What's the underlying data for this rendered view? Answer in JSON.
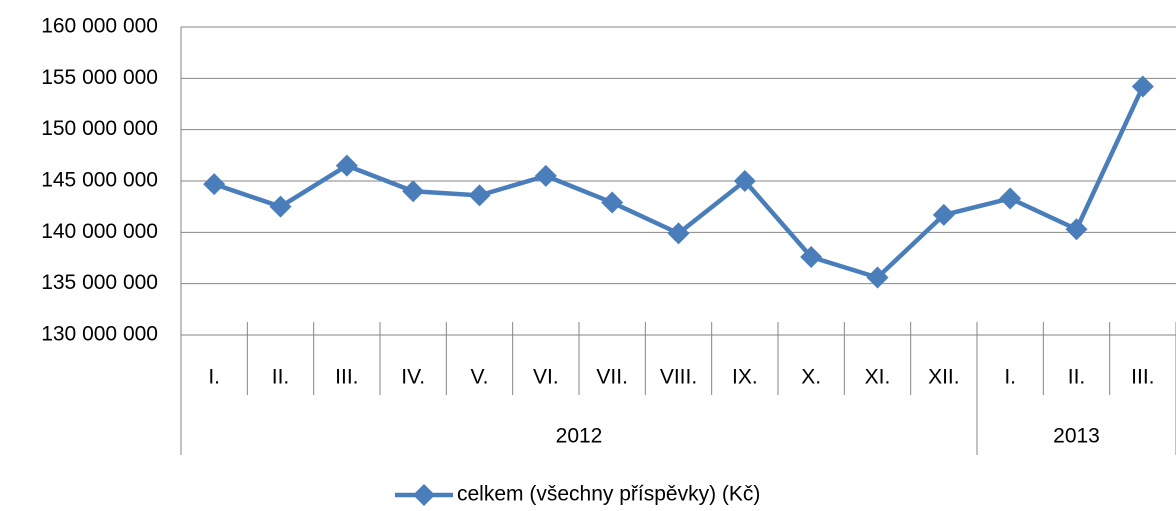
{
  "chart_data": {
    "type": "line",
    "groups": [
      {
        "name": "2012",
        "categories": [
          "I.",
          "II.",
          "III.",
          "IV.",
          "V.",
          "VI.",
          "VII.",
          "VIII.",
          "IX.",
          "X.",
          "XI.",
          "XII."
        ]
      },
      {
        "name": "2013",
        "categories": [
          "I.",
          "II.",
          "III."
        ]
      }
    ],
    "series": [
      {
        "name": "celkem (všechny příspěvky) (Kč)",
        "color": "#4a7ebb",
        "values": [
          144700000,
          142500000,
          146500000,
          144000000,
          143600000,
          145500000,
          142900000,
          139900000,
          145000000,
          137600000,
          135600000,
          141700000,
          143300000,
          140300000,
          154200000
        ]
      }
    ],
    "ylim": [
      130000000,
      160000000
    ],
    "yticks": [
      {
        "value": 130000000,
        "label": "130 000 000"
      },
      {
        "value": 135000000,
        "label": "135 000 000"
      },
      {
        "value": 140000000,
        "label": "140 000 000"
      },
      {
        "value": 145000000,
        "label": "145 000 000"
      },
      {
        "value": 150000000,
        "label": "150 000 000"
      },
      {
        "value": 155000000,
        "label": "155 000 000"
      },
      {
        "value": 160000000,
        "label": "160 000 000"
      }
    ],
    "grid": true,
    "legend": "bottom"
  }
}
